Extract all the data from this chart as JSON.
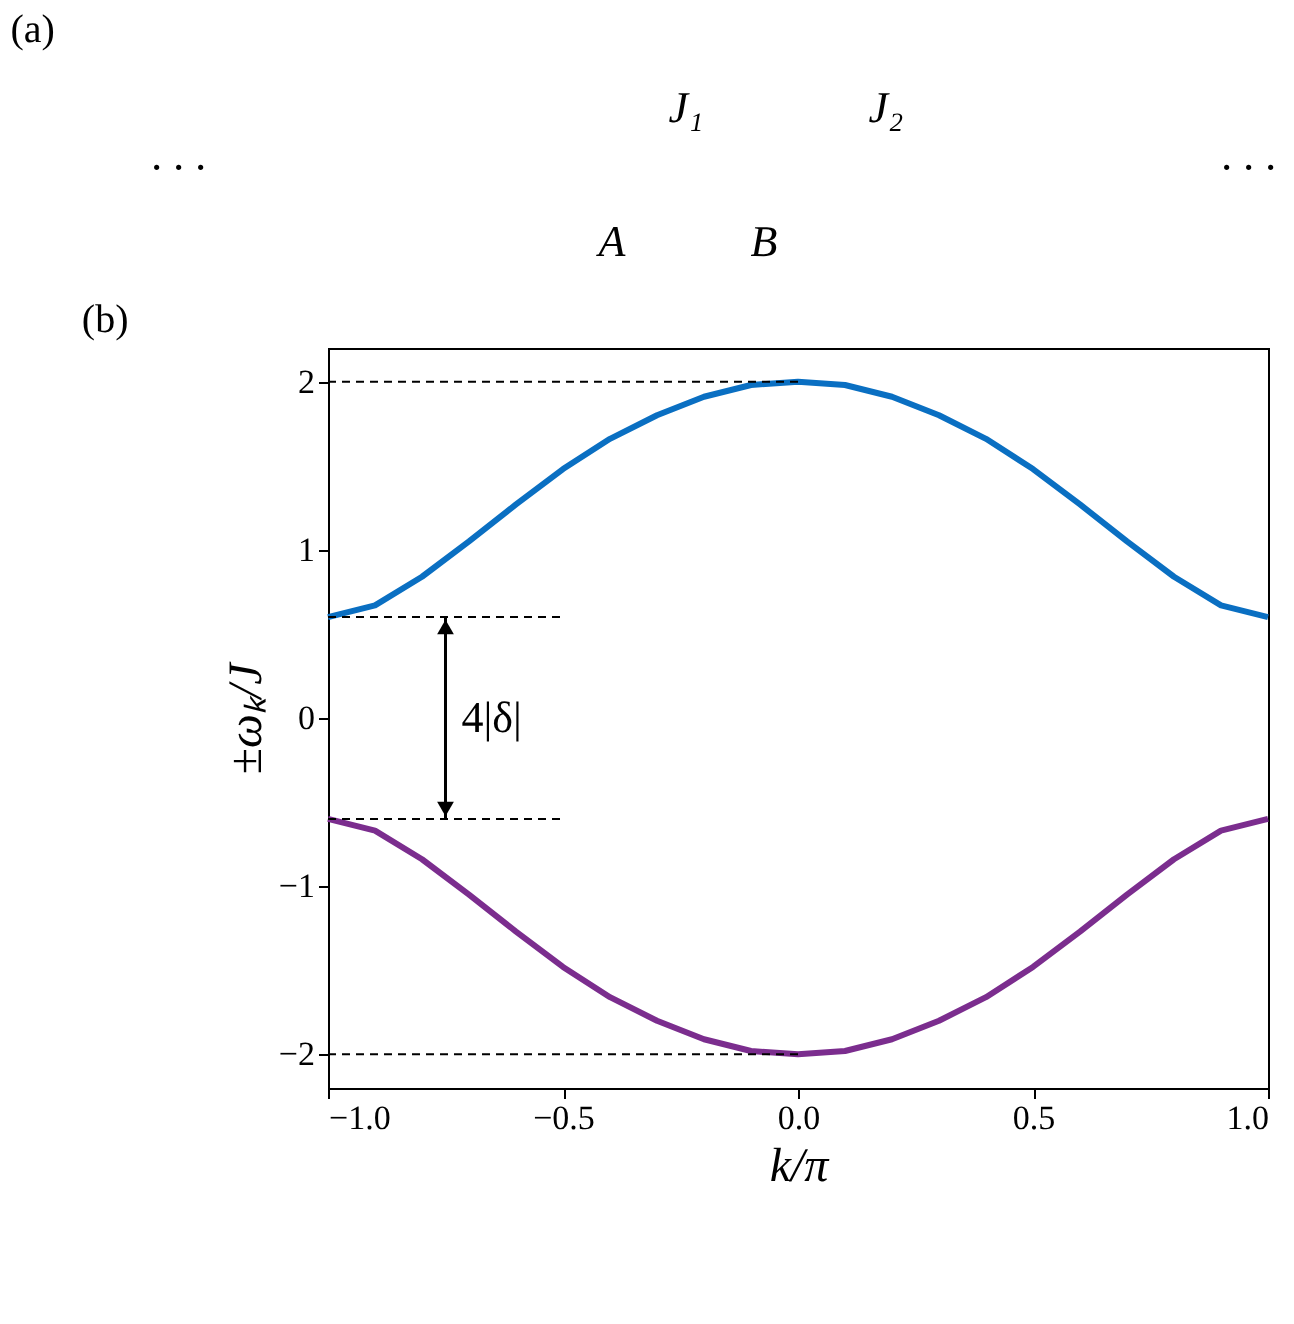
{
  "chart_data": [
    {
      "type": "other",
      "title": "(a)",
      "annotations": [
        "· · ·",
        "J₁",
        "J₂",
        "A",
        "B",
        "· · ·"
      ]
    },
    {
      "type": "line",
      "title": "(b)",
      "xlabel": "k/π",
      "ylabel": "±ωₖ/J",
      "xlim": [
        -1.0,
        1.0
      ],
      "ylim": [
        -2.2,
        2.2
      ],
      "xticks": [
        {
          "value": -1.0,
          "label": "−1.0"
        },
        {
          "value": -0.5,
          "label": "−0.5"
        },
        {
          "value": 0.0,
          "label": "0.0"
        },
        {
          "value": 0.5,
          "label": "0.5"
        },
        {
          "value": 1.0,
          "label": "1.0"
        }
      ],
      "yticks": [
        {
          "value": -2,
          "label": "−2"
        },
        {
          "value": -1,
          "label": "−1"
        },
        0,
        1,
        2
      ],
      "grid": false,
      "marker": "none",
      "x": [
        -1.0,
        -0.9,
        -0.8,
        -0.7,
        -0.6,
        -0.5,
        -0.4,
        -0.3,
        -0.2,
        -0.1,
        0.0,
        0.1,
        0.2,
        0.3,
        0.4,
        0.5,
        0.6,
        0.7,
        0.8,
        0.9,
        1.0
      ],
      "series": [
        {
          "color": "#0a6fc2",
          "line_style": "solid",
          "values": [
            0.6,
            0.67,
            0.84,
            1.05,
            1.27,
            1.48,
            1.66,
            1.8,
            1.91,
            1.98,
            2.0,
            1.98,
            1.91,
            1.8,
            1.66,
            1.48,
            1.27,
            1.05,
            0.84,
            0.67,
            0.6
          ]
        },
        {
          "color": "#7b2d8e",
          "line_style": "solid",
          "values": [
            -0.6,
            -0.67,
            -0.84,
            -1.05,
            -1.27,
            -1.48,
            -1.66,
            -1.8,
            -1.91,
            -1.98,
            -2.0,
            -1.98,
            -1.91,
            -1.8,
            -1.66,
            -1.48,
            -1.27,
            -1.05,
            -0.84,
            -0.67,
            -0.6
          ]
        },
        {
          "color": "#000000",
          "line_style": "dashed",
          "x": [
            -1.0,
            0.0
          ],
          "values": [
            2.0,
            2.0
          ]
        },
        {
          "color": "#000000",
          "line_style": "dashed",
          "x": [
            -1.0,
            0.0
          ],
          "values": [
            -2.0,
            -2.0
          ]
        },
        {
          "color": "#000000",
          "line_style": "dashed",
          "x": [
            -1.0,
            -0.5
          ],
          "values": [
            0.6,
            0.6
          ]
        },
        {
          "color": "#000000",
          "line_style": "dashed",
          "x": [
            -1.0,
            -0.5
          ],
          "values": [
            -0.6,
            -0.6
          ]
        }
      ],
      "annotations": [
        "4|δ|"
      ]
    }
  ]
}
